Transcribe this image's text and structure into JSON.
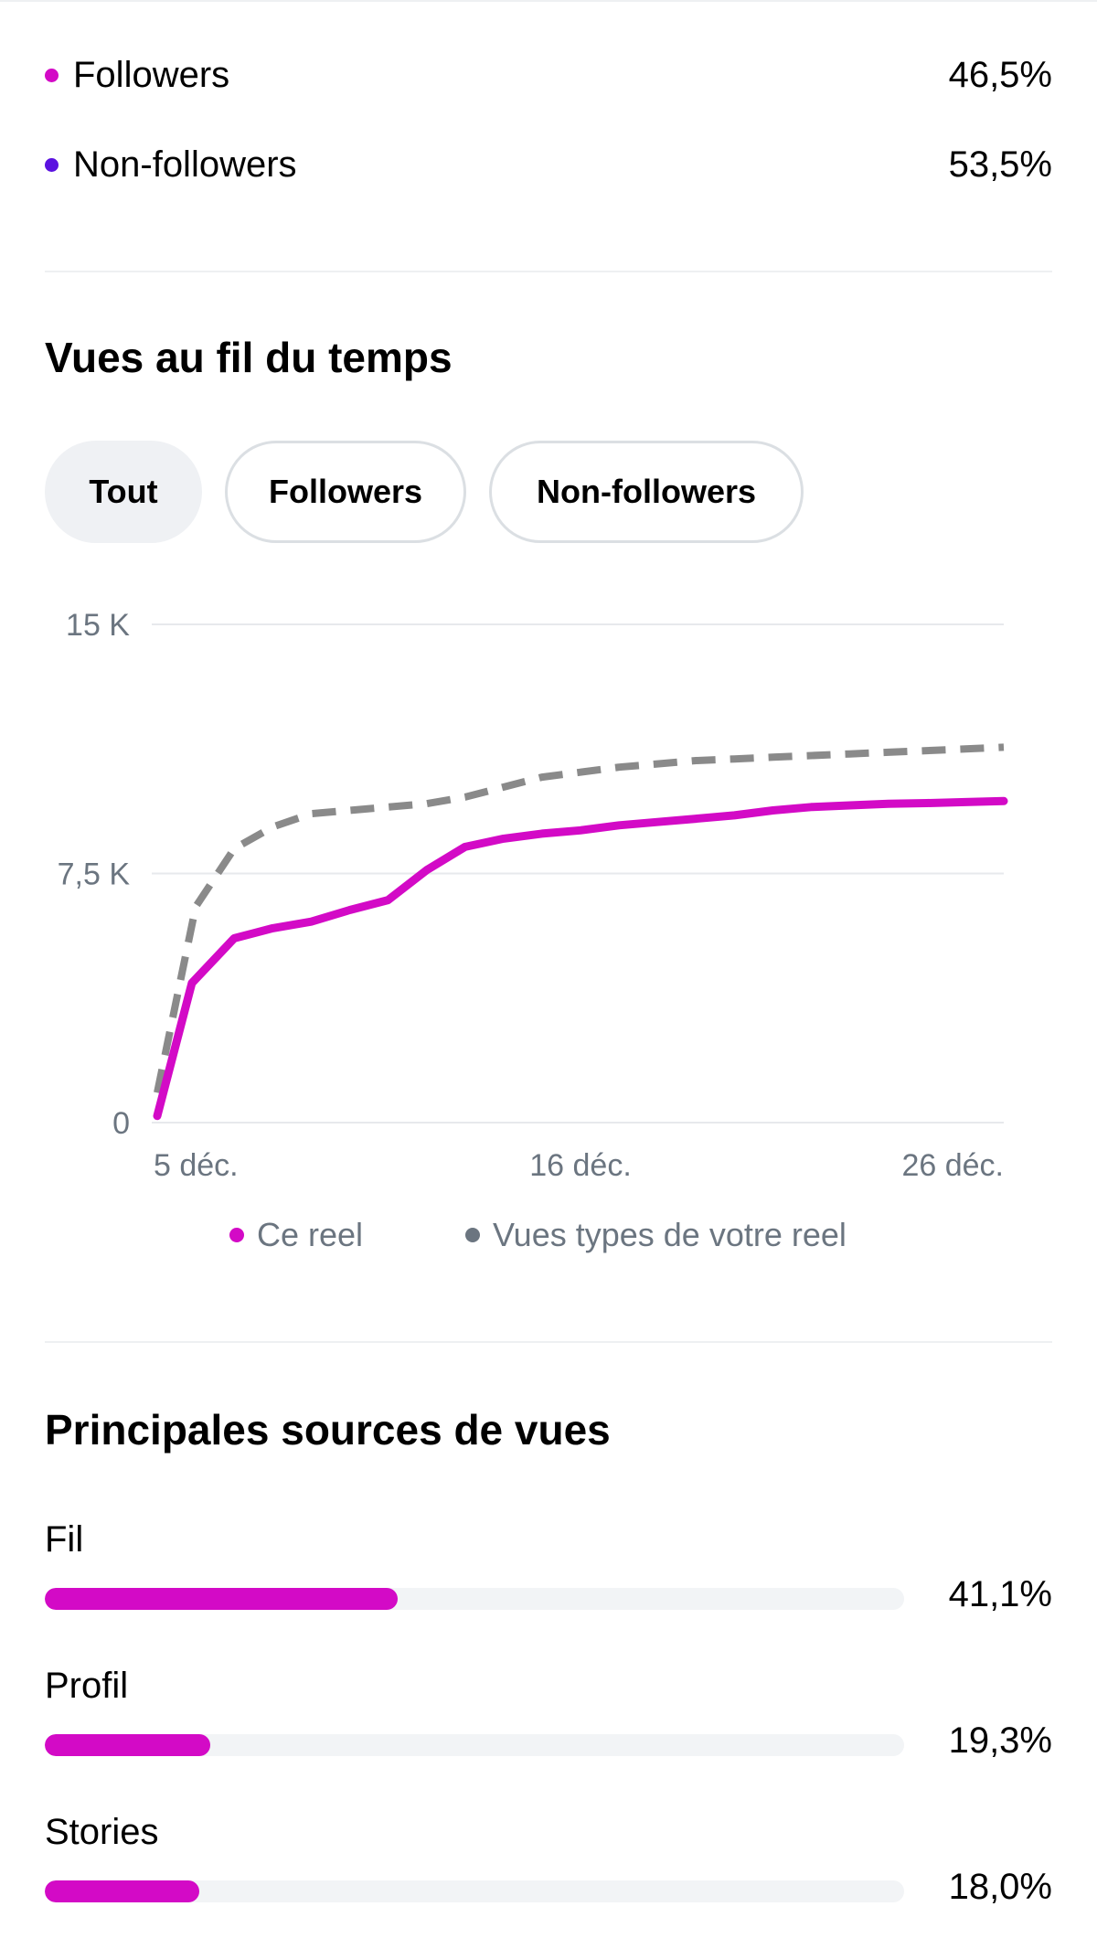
{
  "audience": {
    "items": [
      {
        "label": "Followers",
        "value": "46,5%",
        "color": "#d30ac6"
      },
      {
        "label": "Non-followers",
        "value": "53,5%",
        "color": "#5b12e0"
      }
    ]
  },
  "views_over_time": {
    "title": "Vues au fil du temps",
    "tabs": [
      {
        "label": "Tout",
        "active": true
      },
      {
        "label": "Followers",
        "active": false
      },
      {
        "label": "Non-followers",
        "active": false
      }
    ]
  },
  "chart_data": {
    "type": "line",
    "title": "Vues au fil du temps",
    "xlabel": "",
    "ylabel": "",
    "x_range": [
      5,
      27
    ],
    "ylim": [
      0,
      15000
    ],
    "y_ticks": [
      {
        "value": 0,
        "label": "0"
      },
      {
        "value": 7500,
        "label": "7,5 K"
      },
      {
        "value": 15000,
        "label": "15 K"
      }
    ],
    "x_ticks": [
      {
        "value": 5,
        "label": "5 déc."
      },
      {
        "value": 16,
        "label": "16 déc."
      },
      {
        "value": 26,
        "label": "26 déc."
      }
    ],
    "grid": true,
    "legend_position": "bottom",
    "series": [
      {
        "name": "Ce reel",
        "color": "#d30ac6",
        "style": "solid",
        "points": [
          [
            5,
            200
          ],
          [
            5.9,
            4200
          ],
          [
            7,
            5550
          ],
          [
            8,
            5850
          ],
          [
            9,
            6050
          ],
          [
            10,
            6400
          ],
          [
            11,
            6700
          ],
          [
            12,
            7600
          ],
          [
            13,
            8300
          ],
          [
            14,
            8550
          ],
          [
            15,
            8700
          ],
          [
            16,
            8800
          ],
          [
            17,
            8950
          ],
          [
            18,
            9050
          ],
          [
            19,
            9150
          ],
          [
            20,
            9250
          ],
          [
            21,
            9400
          ],
          [
            22,
            9500
          ],
          [
            23,
            9550
          ],
          [
            24,
            9600
          ],
          [
            25,
            9620
          ],
          [
            26,
            9650
          ],
          [
            27,
            9680
          ]
        ]
      },
      {
        "name": "Vues types de votre reel",
        "color": "#8a8a8a",
        "style": "dashed",
        "points": [
          [
            5,
            900
          ],
          [
            6,
            6500
          ],
          [
            7,
            8250
          ],
          [
            8,
            8900
          ],
          [
            9,
            9300
          ],
          [
            10,
            9400
          ],
          [
            11,
            9500
          ],
          [
            12,
            9600
          ],
          [
            13,
            9800
          ],
          [
            14,
            10100
          ],
          [
            15,
            10400
          ],
          [
            16,
            10550
          ],
          [
            17,
            10700
          ],
          [
            18,
            10800
          ],
          [
            19,
            10900
          ],
          [
            20,
            10950
          ],
          [
            21,
            11000
          ],
          [
            22,
            11050
          ],
          [
            23,
            11100
          ],
          [
            24,
            11150
          ],
          [
            25,
            11200
          ],
          [
            26,
            11250
          ],
          [
            27,
            11300
          ]
        ]
      }
    ]
  },
  "sources": {
    "title": "Principales sources de vues",
    "items": [
      {
        "label": "Fil",
        "value": "41,1%",
        "fraction": 0.411
      },
      {
        "label": "Profil",
        "value": "19,3%",
        "fraction": 0.193
      },
      {
        "label": "Stories",
        "value": "18,0%",
        "fraction": 0.18
      }
    ]
  }
}
